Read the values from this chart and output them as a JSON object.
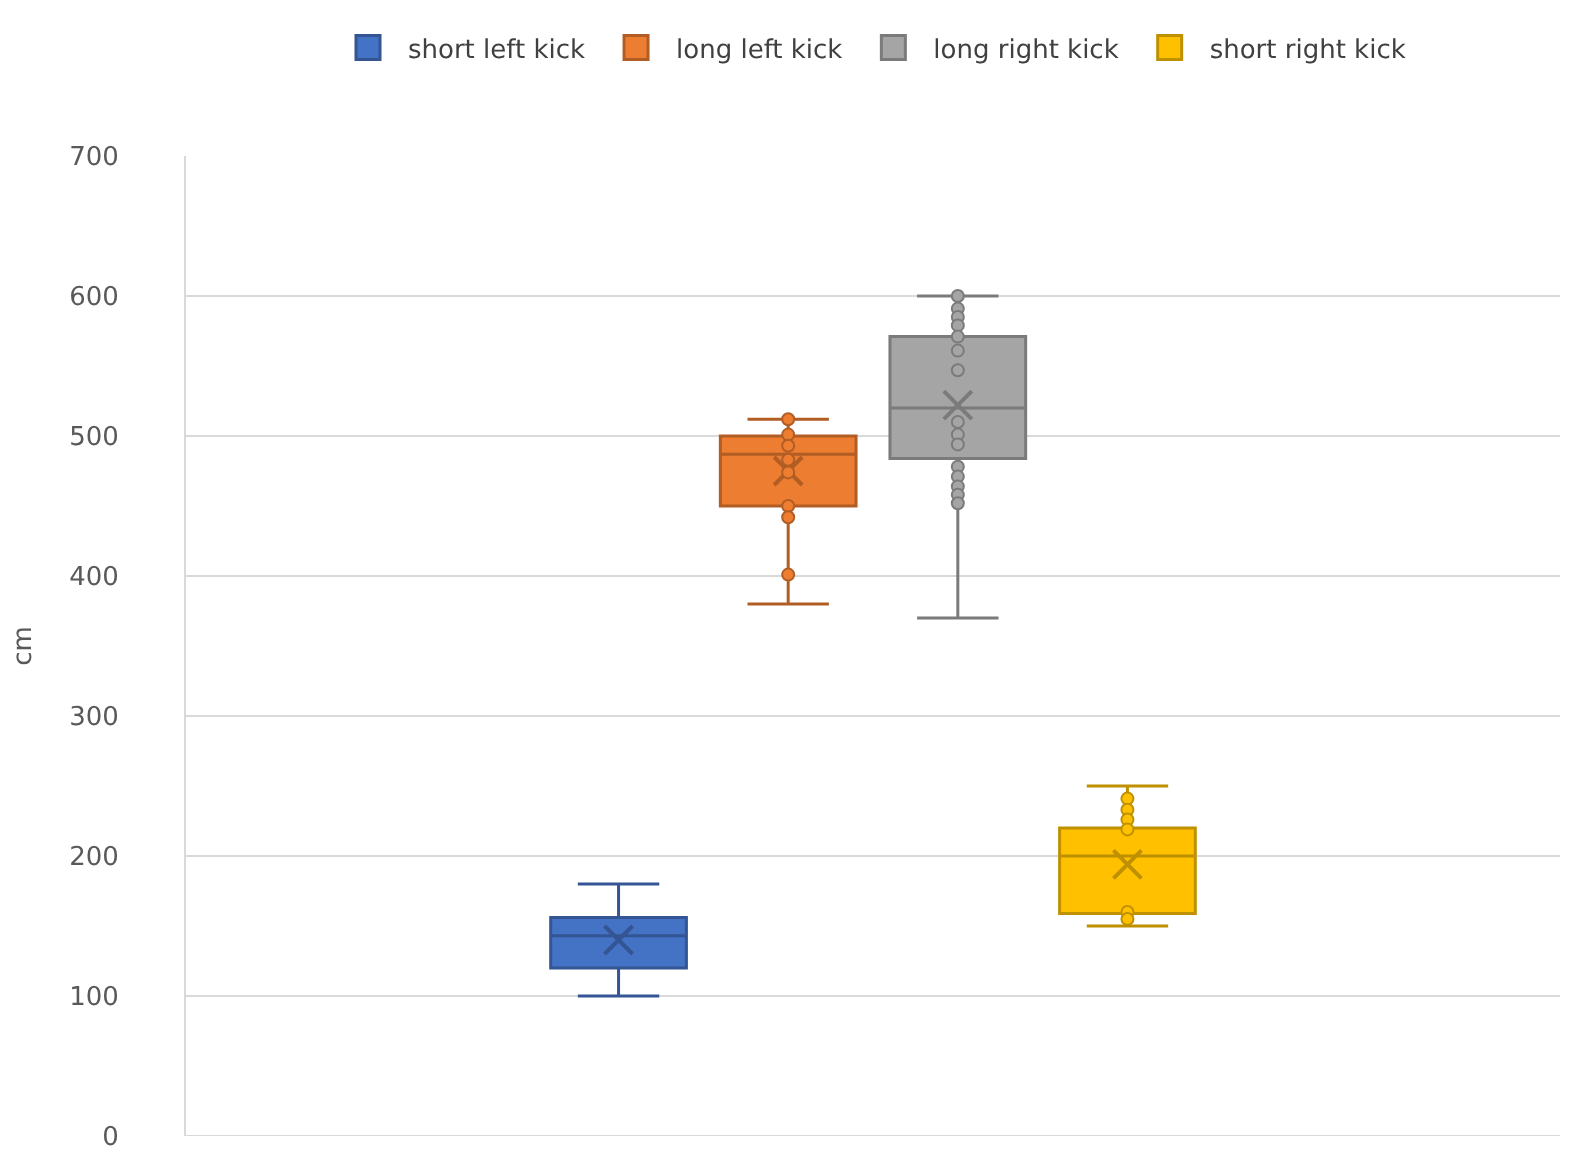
{
  "chart_data": {
    "type": "box",
    "ylabel": "cm",
    "categories": [
      null
    ],
    "ylim": [
      0,
      700
    ],
    "yticks": [
      0,
      100,
      200,
      300,
      400,
      500,
      600,
      700
    ],
    "grid": "y",
    "legend": "top",
    "marker": "circle",
    "series": [
      {
        "name": "short left kick",
        "color": "#4472c4",
        "boxes": [
          {
            "low": 100,
            "q1": 120,
            "median": 143,
            "q3": 156,
            "high": 180,
            "mean": 140
          }
        ]
      },
      {
        "name": "long left kick",
        "color": "#ed7d31",
        "boxes": [
          {
            "low": 380,
            "q1": 450,
            "median": 487,
            "q3": 500,
            "high": 512,
            "mean": 475
          }
        ]
      },
      {
        "type": "scatter",
        "color": "#ed7d31",
        "x": [
          null,
          null,
          null,
          null,
          null,
          null,
          null,
          null
        ],
        "values": [
          512,
          501,
          493,
          483,
          474,
          450,
          442,
          401
        ]
      },
      {
        "name": "long right kick",
        "color": "#a5a5a5",
        "boxes": [
          {
            "low": 370,
            "q1": 484,
            "median": 520,
            "q3": 571,
            "high": 600,
            "mean": 522
          }
        ]
      },
      {
        "type": "scatter",
        "color": "#a5a5a5",
        "x": [
          null,
          null,
          null,
          null,
          null,
          null,
          null,
          null,
          null,
          null,
          null,
          null,
          null,
          null,
          null
        ],
        "values": [
          600,
          591,
          585,
          579,
          571,
          561,
          547,
          510,
          501,
          494,
          478,
          471,
          464,
          458,
          452
        ]
      },
      {
        "name": "short right kick",
        "color": "#ffc000",
        "boxes": [
          {
            "low": 150,
            "q1": 159,
            "median": 200,
            "q3": 220,
            "high": 250,
            "mean": 194
          }
        ]
      },
      {
        "type": "scatter",
        "color": "#ffc000",
        "x": [
          null,
          null,
          null,
          null,
          null,
          null
        ],
        "values": [
          241,
          233,
          226,
          219,
          160,
          155
        ]
      }
    ]
  }
}
